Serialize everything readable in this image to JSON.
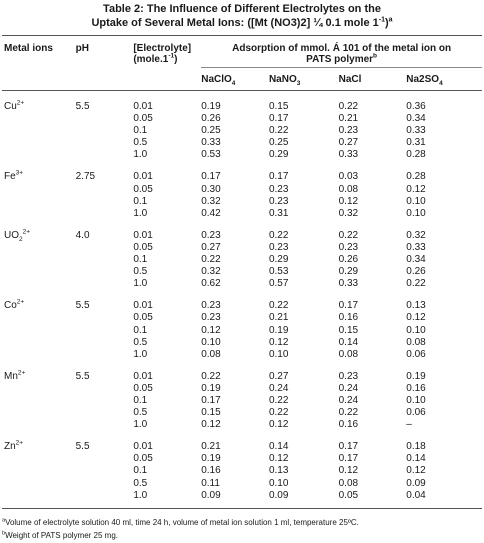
{
  "caption": {
    "line1": "Table 2: The Influence of Different Electrolytes on the",
    "line2_prefix": "Uptake of Several Metal Ions: ([Mt (NO3)2] ¼ 0.1 mole  1",
    "line2_sup": "-1",
    "line2_suffix": ")",
    "line2_note": "a"
  },
  "headers": {
    "metal_ions": "Metal ions",
    "ph": "pH",
    "electrolyte_line1": "[Electrolyte]",
    "electrolyte_line2": "(mole.1",
    "electrolyte_sup": "-1",
    "electrolyte_close": ")",
    "adsorption_line1": "Adsorption of mmol. Á 101 of the  metal ion on",
    "adsorption_line2": "PATS polymer",
    "adsorption_note": "b",
    "cols": [
      {
        "base": "NaClO",
        "sub": "4"
      },
      {
        "base": "NaNO",
        "sub": "3"
      },
      {
        "base": "NaCl",
        "sub": ""
      },
      {
        "base": "Na2SO",
        "sub": "4"
      }
    ]
  },
  "groups": [
    {
      "ion": {
        "base": "Cu",
        "sub": "",
        "sup": "2+"
      },
      "ph": "5.5",
      "rows": [
        [
          "0.01",
          "0.19",
          "0.15",
          "0.22",
          "0.36"
        ],
        [
          "0.05",
          "0.26",
          "0.17",
          "0.21",
          "0.34"
        ],
        [
          "0.1",
          "0.25",
          "0.22",
          "0.23",
          "0.33"
        ],
        [
          "0.5",
          "0.33",
          "0.25",
          "0.27",
          "0.31"
        ],
        [
          "1.0",
          "0.53",
          "0.29",
          "0.33",
          "0.28"
        ]
      ]
    },
    {
      "ion": {
        "base": "Fe",
        "sub": "",
        "sup": "3+"
      },
      "ph": "2.75",
      "rows": [
        [
          "0.01",
          "0.17",
          "0.17",
          "0.03",
          "0.28"
        ],
        [
          "0.05",
          "0.30",
          "0.23",
          "0.08",
          "0.12"
        ],
        [
          "0.1",
          "0.32",
          "0.23",
          "0.12",
          "0.10"
        ],
        [
          "1.0",
          "0.42",
          "0.31",
          "0.32",
          "0.10"
        ]
      ]
    },
    {
      "ion": {
        "base": "UO",
        "sub": "2",
        "sup": "2+"
      },
      "ph": "4.0",
      "rows": [
        [
          "0.01",
          "0.23",
          "0.22",
          "0.22",
          "0.32"
        ],
        [
          "0.05",
          "0.27",
          "0.23",
          "0.23",
          "0.33"
        ],
        [
          "0.1",
          "0.22",
          "0.29",
          "0.26",
          "0.34"
        ],
        [
          "0.5",
          "0.32",
          "0.53",
          "0.29",
          "0.26"
        ],
        [
          "1.0",
          "0.62",
          "0.57",
          "0.33",
          "0.22"
        ]
      ]
    },
    {
      "ion": {
        "base": "Co",
        "sub": "",
        "sup": "2+"
      },
      "ph": "5.5",
      "rows": [
        [
          "0.01",
          "0.23",
          "0.22",
          "0.17",
          "0.13"
        ],
        [
          "0.05",
          "0.23",
          "0.21",
          "0.16",
          "0.12"
        ],
        [
          "0.1",
          "0.12",
          "0.19",
          "0.15",
          "0.10"
        ],
        [
          "0.5",
          "0.10",
          "0.12",
          "0.14",
          "0.08"
        ],
        [
          "1.0",
          "0.08",
          "0.10",
          "0.08",
          "0.06"
        ]
      ]
    },
    {
      "ion": {
        "base": "Mn",
        "sub": "",
        "sup": "2+"
      },
      "ph": "5.5",
      "rows": [
        [
          "0.01",
          "0.22",
          "0.27",
          "0.23",
          "0.19"
        ],
        [
          "0.05",
          "0.19",
          "0.24",
          "0.24",
          "0.16"
        ],
        [
          "0.1",
          "0.17",
          "0.22",
          "0.24",
          "0.10"
        ],
        [
          "0.5",
          "0.15",
          "0.22",
          "0.22",
          "0.06"
        ],
        [
          "1.0",
          "0.12",
          "0.12",
          "0.16",
          "–"
        ]
      ]
    },
    {
      "ion": {
        "base": "Zn",
        "sub": "",
        "sup": "2+"
      },
      "ph": "5.5",
      "rows": [
        [
          "0.01",
          "0.21",
          "0.14",
          "0.17",
          "0.18"
        ],
        [
          "0.05",
          "0.19",
          "0.12",
          "0.17",
          "0.14"
        ],
        [
          "0.1",
          "0.16",
          "0.13",
          "0.12",
          "0.12"
        ],
        [
          "0.5",
          "0.11",
          "0.10",
          "0.08",
          "0.09"
        ],
        [
          "1.0",
          "0.09",
          "0.09",
          "0.05",
          "0.04"
        ]
      ]
    }
  ],
  "footnotes": [
    {
      "mark": "a",
      "text": "Volume of electrolyte solution 40 ml, time 24 h, volume of metal ion solution 1 ml, temperature 25ºC."
    },
    {
      "mark": "b",
      "text": "Weight of PATS polymer 25 mg."
    }
  ]
}
